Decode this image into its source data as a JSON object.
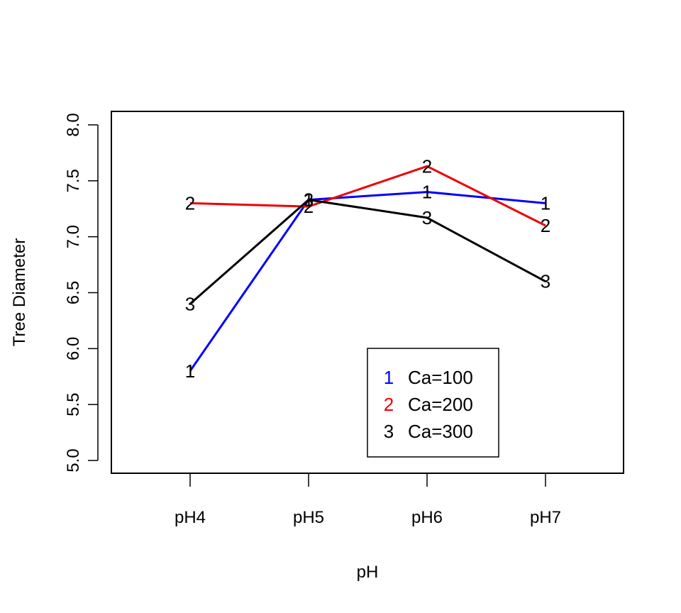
{
  "chart_data": {
    "type": "line",
    "title": "",
    "xlabel": "pH",
    "ylabel": "Tree Diameter",
    "categories": [
      "pH4",
      "pH5",
      "pH6",
      "pH7"
    ],
    "ylim": [
      5.0,
      8.0
    ],
    "yticks": [
      "5.0",
      "5.5",
      "6.0",
      "6.5",
      "7.0",
      "7.5",
      "8.0"
    ],
    "grid": false,
    "legend_position": "bottom-right",
    "series": [
      {
        "name": "Ca=100",
        "symbol": "1",
        "color": "#0000ff",
        "values": [
          5.8,
          7.33,
          7.4,
          7.3
        ]
      },
      {
        "name": "Ca=200",
        "symbol": "2",
        "color": "#ee0000",
        "values": [
          7.3,
          7.27,
          7.63,
          7.1
        ]
      },
      {
        "name": "Ca=300",
        "symbol": "3",
        "color": "#000000",
        "values": [
          6.4,
          7.33,
          7.17,
          6.6
        ]
      }
    ]
  }
}
